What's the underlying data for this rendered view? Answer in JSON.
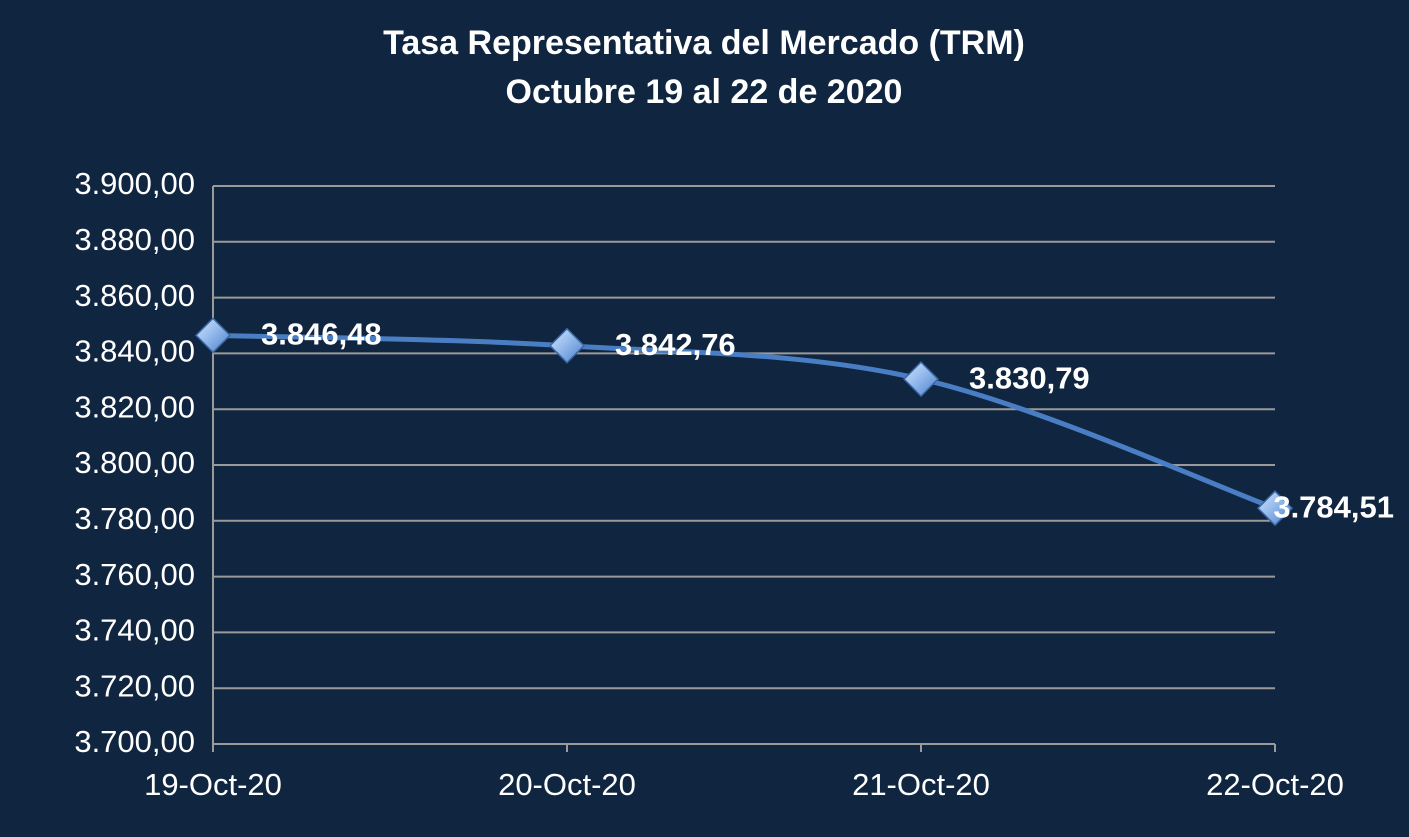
{
  "chart_data": {
    "type": "line",
    "title": "Tasa Representativa del Mercado (TRM)",
    "subtitle": "Octubre 19 al 22 de 2020",
    "categories": [
      "19-Oct-20",
      "20-Oct-20",
      "21-Oct-20",
      "22-Oct-20"
    ],
    "series": [
      {
        "color": "#4a7ec4",
        "values": [
          3846.48,
          3842.76,
          3830.79,
          3784.51
        ],
        "value_labels": [
          "3.846,48",
          "3.842,76",
          "3.830,79",
          "3.784,51"
        ]
      }
    ],
    "ylim": [
      3700,
      3900
    ],
    "yticks": [
      {
        "value": 3700,
        "label": "3.700,00"
      },
      {
        "value": 3720,
        "label": "3.720,00"
      },
      {
        "value": 3740,
        "label": "3.740,00"
      },
      {
        "value": 3760,
        "label": "3.760,00"
      },
      {
        "value": 3780,
        "label": "3.780,00"
      },
      {
        "value": 3800,
        "label": "3.800,00"
      },
      {
        "value": 3820,
        "label": "3.820,00"
      },
      {
        "value": 3840,
        "label": "3.840,00"
      },
      {
        "value": 3860,
        "label": "3.860,00"
      },
      {
        "value": 3880,
        "label": "3.880,00"
      },
      {
        "value": 3900,
        "label": "3.900,00"
      }
    ],
    "grid": true,
    "smooth": true
  }
}
